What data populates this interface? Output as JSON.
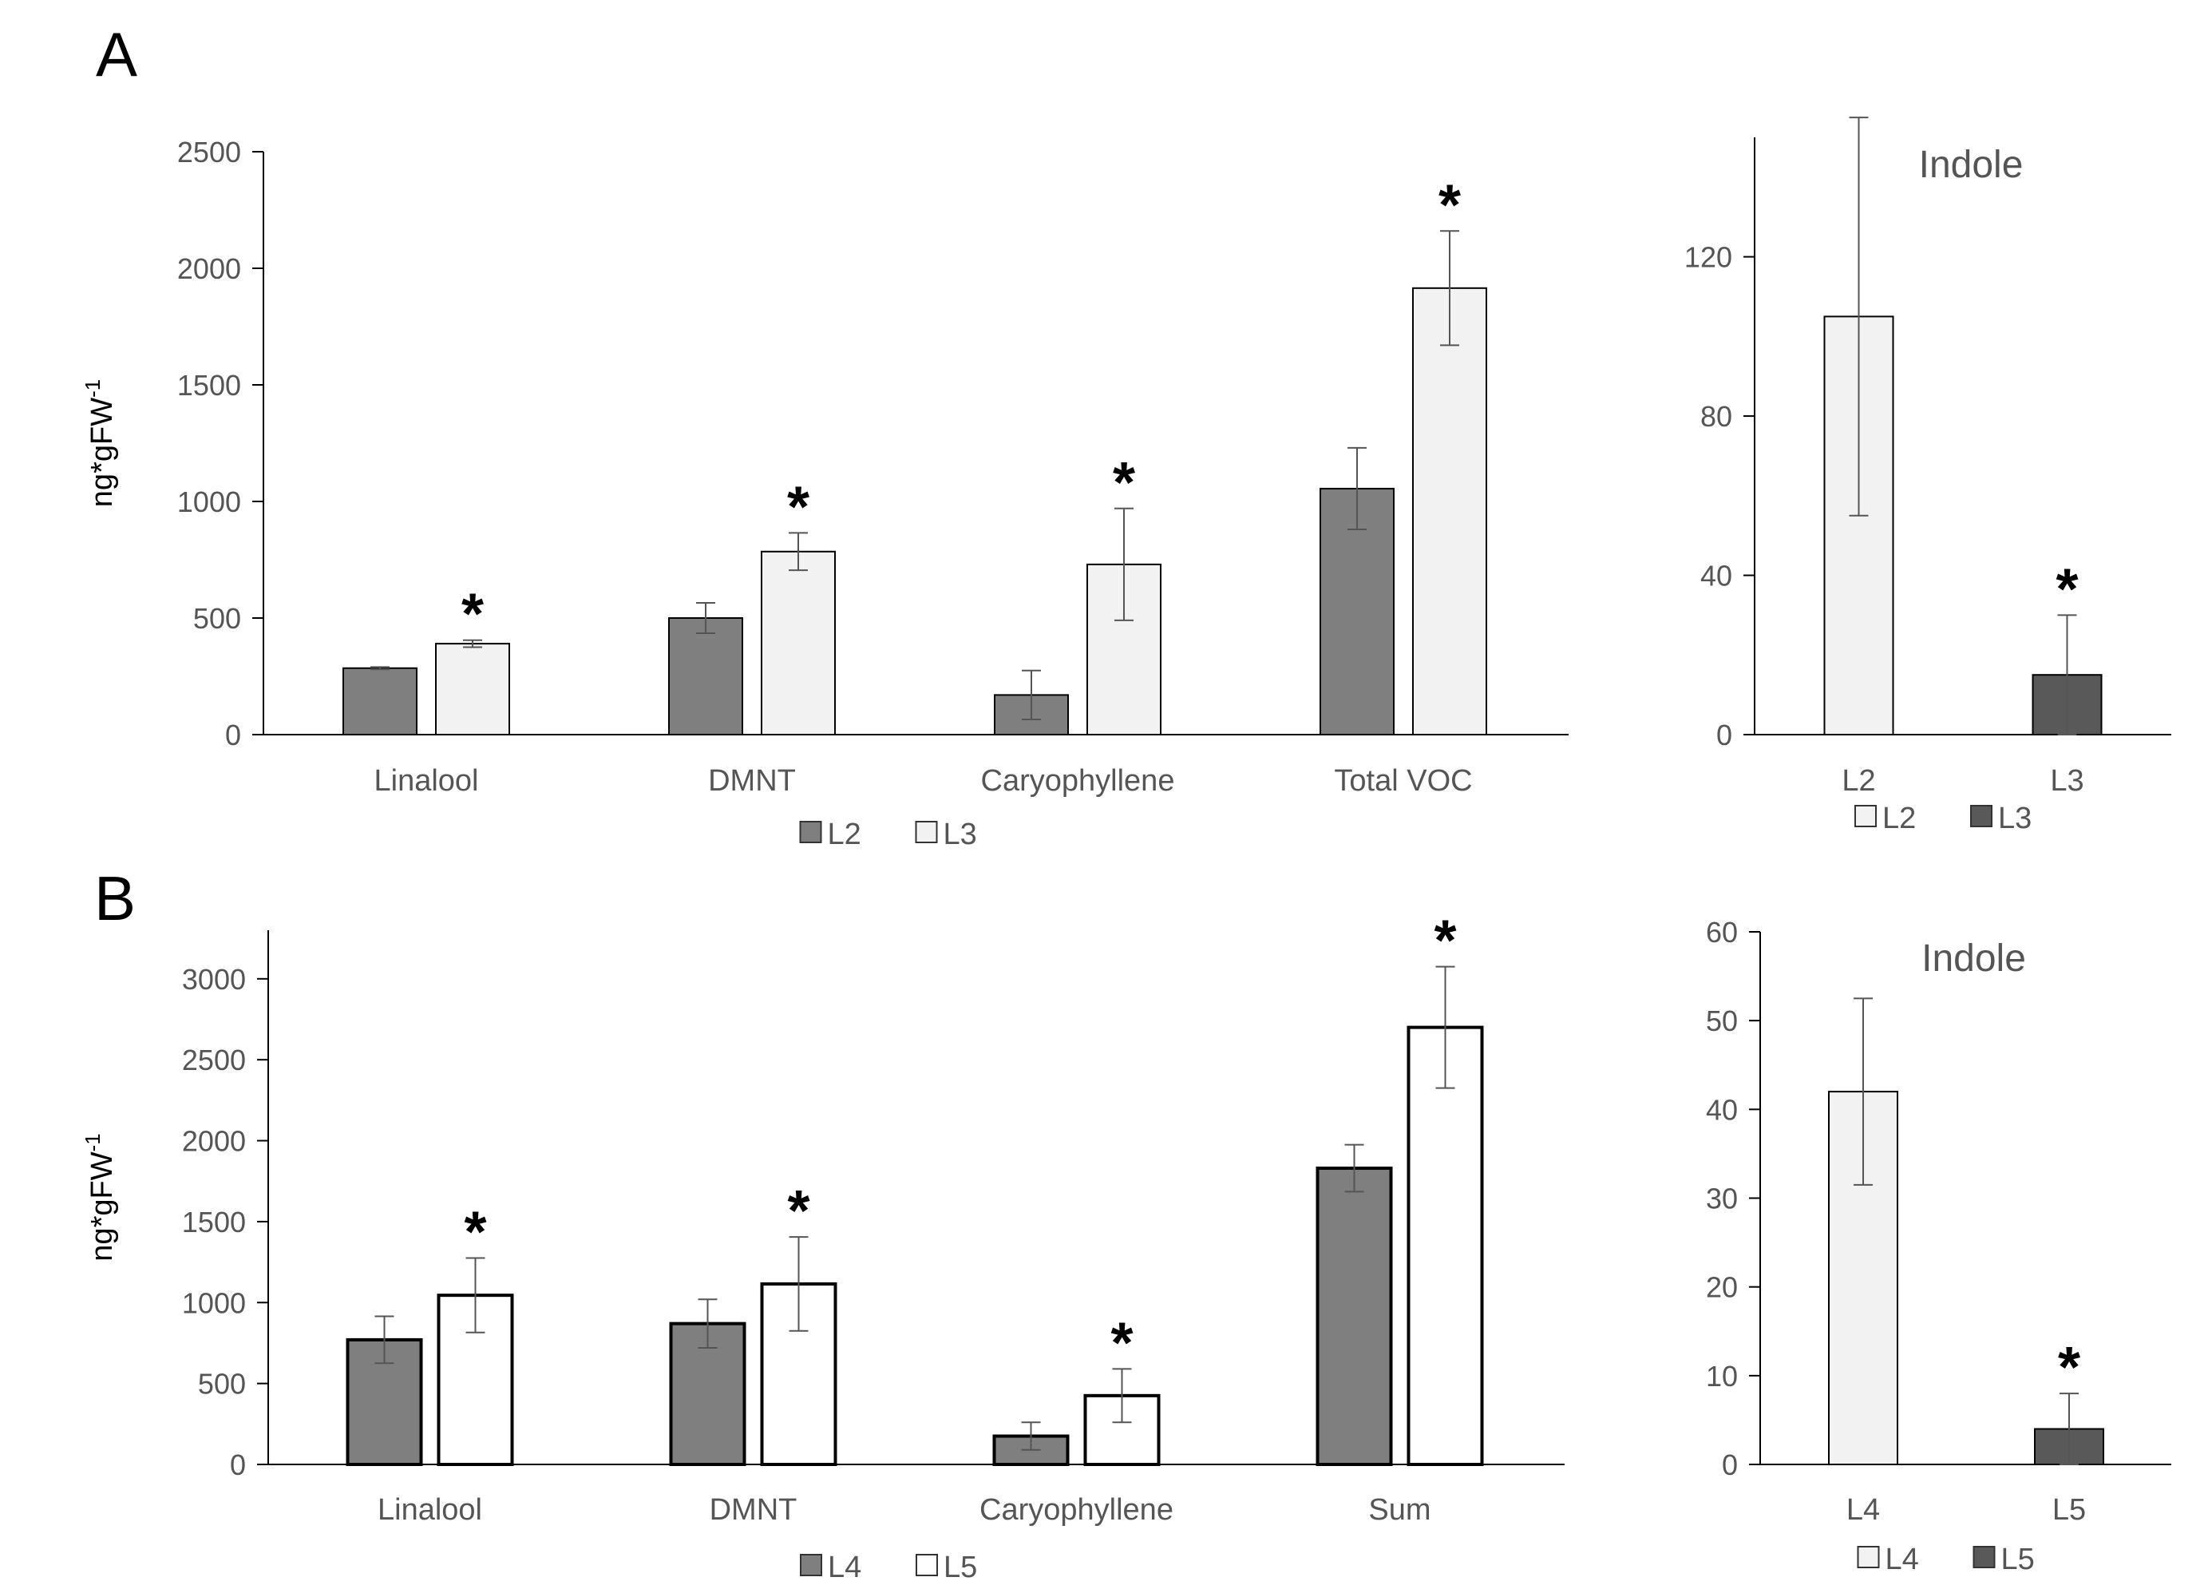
{
  "panels": [
    "A",
    "B"
  ],
  "chart_data": [
    {
      "type": "bar",
      "panel": "A",
      "title": "",
      "ylabel": "ng*gFW",
      "ylabel_sup": "-1",
      "ylim": [
        0,
        2500
      ],
      "yticks": [
        0,
        500,
        1000,
        1500,
        2000,
        2500
      ],
      "categories": [
        "Linalool",
        "DMNT",
        "Caryophyllene",
        "Total VOC"
      ],
      "series": [
        {
          "name": "L2",
          "color": "#7f7f7f",
          "values": [
            285,
            500,
            170,
            1055
          ],
          "errors": [
            5,
            65,
            105,
            175
          ]
        },
        {
          "name": "L3",
          "color": "#f2f2f2",
          "values": [
            390,
            785,
            730,
            1915
          ],
          "errors": [
            15,
            80,
            240,
            245
          ]
        }
      ],
      "significance": [
        "*",
        "*",
        "*",
        "*"
      ],
      "legend_position": "bottom"
    },
    {
      "type": "bar",
      "panel": "A",
      "title": "Indole",
      "ylim": [
        0,
        150
      ],
      "yticks": [
        0,
        40,
        80,
        120
      ],
      "categories": [
        "L2",
        "L3"
      ],
      "values": [
        105,
        15
      ],
      "errors": [
        50,
        15
      ],
      "colors": [
        "#f2f2f2",
        "#595959"
      ],
      "significance": [
        "",
        "*"
      ],
      "legend": [
        {
          "name": "L2",
          "color": "#f2f2f2"
        },
        {
          "name": "L3",
          "color": "#595959"
        }
      ],
      "legend_position": "bottom"
    },
    {
      "type": "bar",
      "panel": "B",
      "title": "",
      "ylabel": "ng*gFW",
      "ylabel_sup": "-1",
      "ylim": [
        0,
        3300
      ],
      "yticks": [
        0,
        500,
        1000,
        1500,
        2000,
        2500,
        3000
      ],
      "categories": [
        "Linalool",
        "DMNT",
        "Caryophyllene",
        "Sum"
      ],
      "series": [
        {
          "name": "L4",
          "color": "#7f7f7f",
          "values": [
            770,
            870,
            175,
            1830
          ],
          "errors": [
            145,
            150,
            85,
            145
          ]
        },
        {
          "name": "L5",
          "color": "#ffffff",
          "values": [
            1045,
            1115,
            425,
            2700
          ],
          "errors": [
            230,
            290,
            165,
            375
          ]
        }
      ],
      "significance": [
        "*",
        "*",
        "*",
        "*"
      ],
      "legend_position": "bottom"
    },
    {
      "type": "bar",
      "panel": "B",
      "title": "Indole",
      "ylim": [
        0,
        60
      ],
      "yticks": [
        0,
        10,
        20,
        30,
        40,
        50,
        60
      ],
      "categories": [
        "L4",
        "L5"
      ],
      "values": [
        42,
        4
      ],
      "errors": [
        10.5,
        4
      ],
      "colors": [
        "#f2f2f2",
        "#595959"
      ],
      "significance": [
        "",
        "*"
      ],
      "legend": [
        {
          "name": "L4",
          "color": "#f2f2f2"
        },
        {
          "name": "L5",
          "color": "#595959"
        }
      ],
      "legend_position": "bottom"
    }
  ]
}
